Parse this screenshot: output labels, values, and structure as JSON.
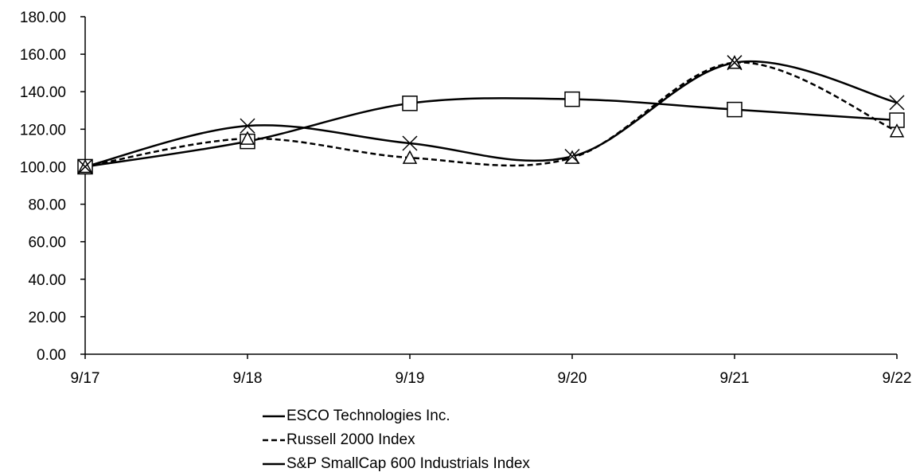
{
  "chart_data": {
    "type": "line",
    "categories": [
      "9/17",
      "9/18",
      "9/19",
      "9/20",
      "9/21",
      "9/22"
    ],
    "ylim": [
      0,
      180
    ],
    "yticks": [
      "0.00",
      "20.00",
      "40.00",
      "60.00",
      "80.00",
      "100.00",
      "120.00",
      "140.00",
      "160.00",
      "180.00"
    ],
    "grid": false,
    "legend_position": "bottom",
    "series": [
      {
        "name": "ESCO Technologies Inc.",
        "values": [
          100.0,
          113.5,
          133.8,
          136.0,
          130.5,
          124.8
        ],
        "marker": "square",
        "dash": "solid",
        "color": "#000000"
      },
      {
        "name": "Russell 2000 Index",
        "values": [
          100.0,
          115.0,
          104.8,
          104.8,
          155.5,
          119.0
        ],
        "marker": "triangle",
        "dash": "dashed",
        "color": "#000000"
      },
      {
        "name": "S&P SmallCap 600 Industrials Index",
        "values": [
          100.0,
          121.8,
          112.5,
          105.5,
          155.5,
          134.2
        ],
        "marker": "x",
        "dash": "solid",
        "color": "#000000"
      }
    ]
  }
}
